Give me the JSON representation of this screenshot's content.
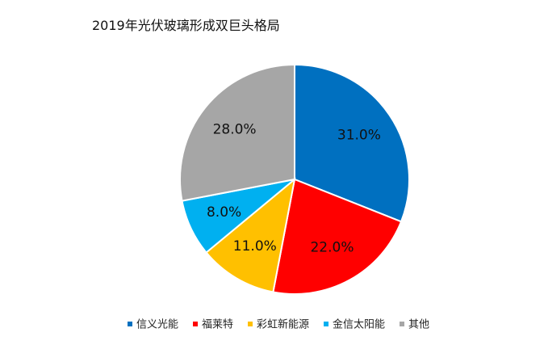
{
  "chart_data": {
    "type": "pie",
    "title": "2019年光伏玻璃形成双巨头格局",
    "labels": [
      "信义光能",
      "福莱特",
      "彩虹新能源",
      "金信太阳能",
      "其他"
    ],
    "values": [
      31.0,
      22.0,
      11.0,
      8.0,
      28.0
    ],
    "value_labels": [
      "31.0%",
      "22.0%",
      "11.0%",
      "8.0%",
      "28.0%"
    ],
    "colors": [
      "#0070C0",
      "#FF0000",
      "#FFC000",
      "#00B0F0",
      "#A6A6A6"
    ],
    "start_angle": "12 o'clock",
    "direction": "clockwise",
    "legend_position": "bottom"
  }
}
